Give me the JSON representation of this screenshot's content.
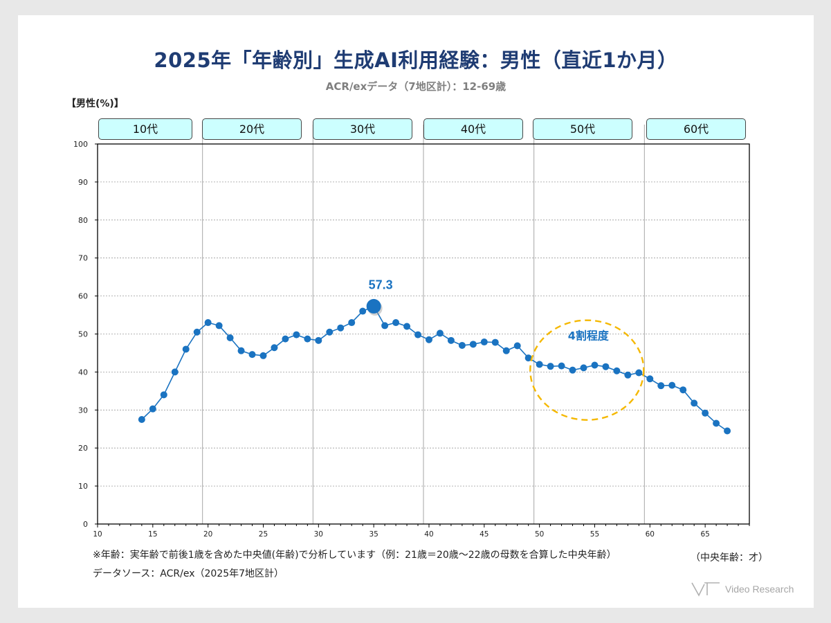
{
  "title": "2025年「年齢別」生成AI利用経験：男性（直近1か月）",
  "subtitle": "ACR/exデータ（7地区計）：12-69歳",
  "ylabel": "【男性(%)】",
  "age_groups": [
    "10代",
    "20代",
    "30代",
    "40代",
    "50代",
    "60代"
  ],
  "footnote": "※年齢：実年齢で前後1歳を含めた中央値(年齢)で分析しています（例：21歳＝20歳～22歳の母数を合算した中央年齢）",
  "source": "データソース：ACR/ex（2025年7地区計）",
  "unit_label": "（中央年齢：才）",
  "logo_text": "Video Research",
  "colors": {
    "title": "#1f3c73",
    "series": "#1a73c1",
    "highlight": "#f5b800",
    "box_fill": "#ccffff"
  },
  "chart_data": {
    "type": "line",
    "x": [
      14,
      15,
      16,
      17,
      18,
      19,
      20,
      21,
      22,
      23,
      24,
      25,
      26,
      27,
      28,
      29,
      30,
      31,
      32,
      33,
      34,
      35,
      36,
      37,
      38,
      39,
      40,
      41,
      42,
      43,
      44,
      45,
      46,
      47,
      48,
      49,
      50,
      51,
      52,
      53,
      54,
      55,
      56,
      57,
      58,
      59,
      60,
      61,
      62,
      63,
      64,
      65,
      66,
      67
    ],
    "series": [
      {
        "values": [
          27.5,
          30.3,
          34.0,
          40.0,
          46.0,
          50.5,
          53.0,
          52.2,
          49.0,
          45.6,
          44.6,
          44.3,
          46.4,
          48.7,
          49.8,
          48.7,
          48.3,
          50.5,
          51.6,
          53.0,
          56.0,
          57.3,
          52.2,
          53.0,
          52.0,
          49.8,
          48.5,
          50.2,
          48.3,
          47.0,
          47.3,
          47.9,
          47.8,
          45.6,
          46.9,
          43.7,
          42.0,
          41.5,
          41.6,
          40.5,
          41.1,
          41.8,
          41.4,
          40.3,
          39.2,
          39.8,
          38.2,
          36.4,
          36.5,
          35.3,
          31.8,
          29.2,
          26.5,
          24.5
        ]
      }
    ],
    "peak": {
      "x": 35,
      "y": 57.3,
      "label": "57.3"
    },
    "annotation": "4割程度",
    "xlim": [
      10,
      69
    ],
    "ylim": [
      0,
      100
    ],
    "xticks": [
      10,
      15,
      20,
      25,
      30,
      35,
      40,
      45,
      50,
      55,
      60,
      65
    ],
    "yticks": [
      0,
      10,
      20,
      30,
      40,
      50,
      60,
      70,
      80,
      90,
      100
    ],
    "group_boundaries": [
      19.5,
      29.5,
      39.5,
      49.5,
      59.5
    ],
    "grid": true
  }
}
